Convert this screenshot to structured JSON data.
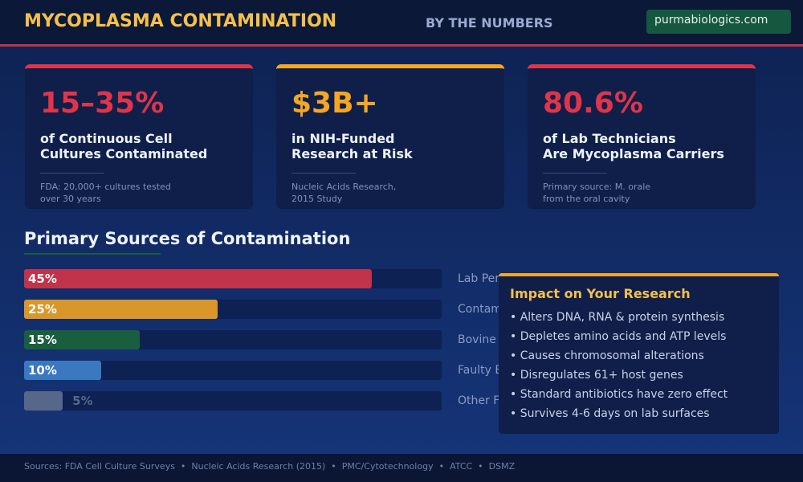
{
  "header": {
    "title": "MYCOPLASMA CONTAMINATION",
    "tagline": "BY THE NUMBERS",
    "link": "purmabiologics.com"
  },
  "stats": [
    {
      "value": "15–35%",
      "color": "#e0344a",
      "lines": [
        "of Continuous Cell",
        "Cultures Contaminated"
      ],
      "source": [
        "FDA: 20,000+ cultures tested",
        "over 30 years"
      ]
    },
    {
      "value": "$3B+",
      "color": "#f5a623",
      "lines": [
        "in NIH-Funded",
        "Research at Risk"
      ],
      "source": [
        "Nucleic Acids Research,",
        "2015 Study"
      ]
    },
    {
      "value": "80.6%",
      "color": "#e0344a",
      "lines": [
        "of Lab Technicians",
        "Are Mycoplasma Carriers"
      ],
      "source": [
        "Primary source: M. orale",
        "from the oral cavity"
      ]
    }
  ],
  "sources_chart": {
    "title": "Primary Sources of Contamination",
    "items": [
      {
        "label": "Lab Per",
        "value": 45,
        "value_label": "45%",
        "color": "#c0334a"
      },
      {
        "label": "Contam",
        "value": 25,
        "value_label": "25%",
        "color": "#d9962a"
      },
      {
        "label": "Bovine",
        "value": 15,
        "value_label": "15%",
        "color": "#1a5e40"
      },
      {
        "label": "Faulty E",
        "value": 10,
        "value_label": "10%",
        "color": "#3a78c0"
      },
      {
        "label": "Other F",
        "value": 5,
        "value_label": "5%",
        "color": "#56678a"
      }
    ]
  },
  "impact": {
    "title": "Impact on Your Research",
    "items": [
      "Alters DNA, RNA & protein synthesis",
      "Depletes amino acids and ATP levels",
      "Causes chromosomal alterations",
      "Disregulates 61+ host genes",
      "Standard antibiotics have zero effect",
      "Survives 4-6 days on lab surfaces"
    ]
  },
  "footer": {
    "sources": [
      "Sources: FDA Cell Culture Surveys",
      "Nucleic Acids Research (2015)",
      "PMC/Cytotechnology",
      "ATCC",
      "DSMZ"
    ]
  }
}
